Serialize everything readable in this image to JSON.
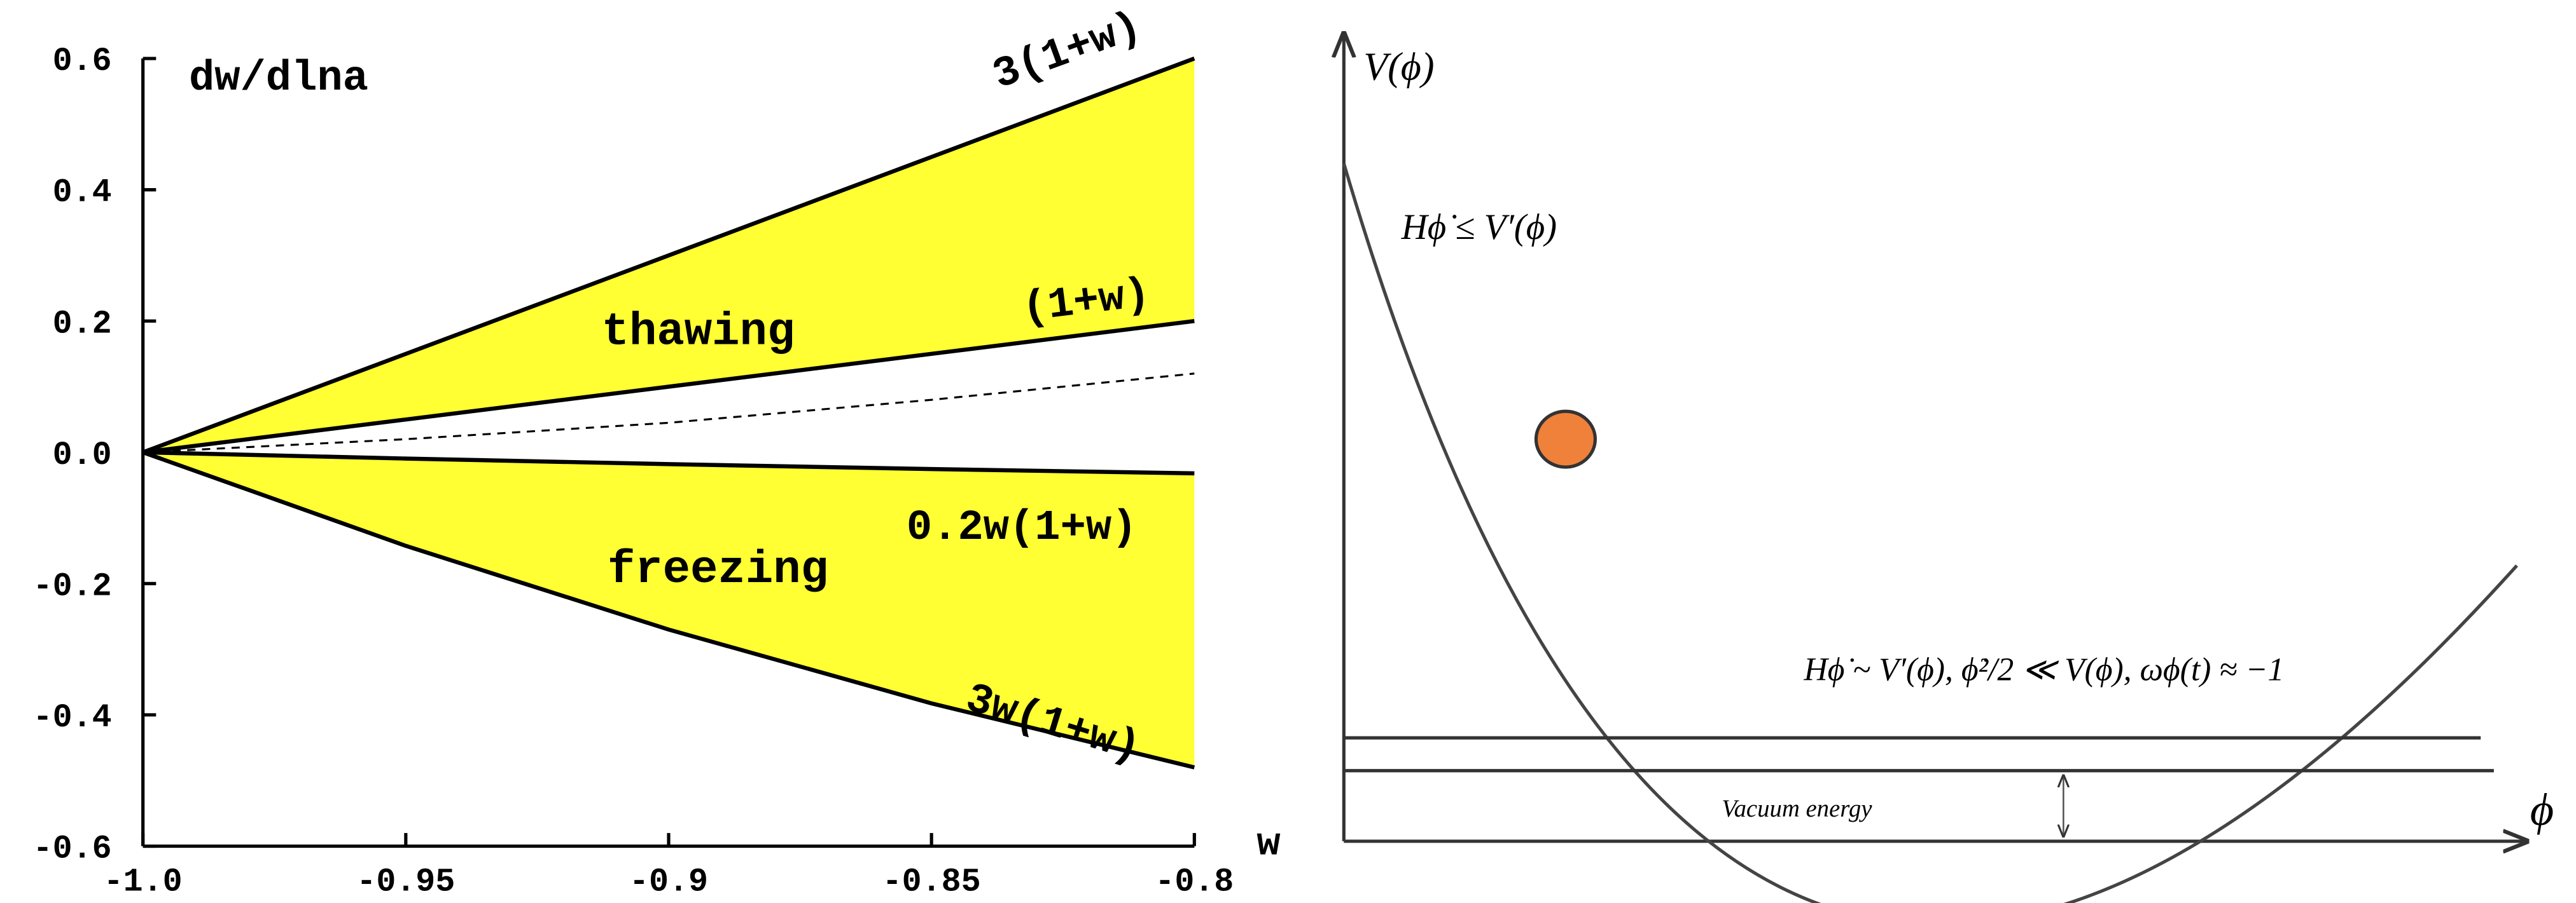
{
  "chart_data": {
    "type": "line",
    "title": "dw/dlna",
    "x": [
      -1,
      -0.95,
      -0.9,
      -0.85,
      -0.8
    ],
    "series": [
      {
        "name": "3(1+w)",
        "color": "#000000",
        "values": [
          0,
          0.15,
          0.3,
          0.45,
          0.6
        ]
      },
      {
        "name": "(1+w)",
        "color": "#000000",
        "values": [
          0,
          0.05,
          0.1,
          0.15,
          0.2
        ]
      },
      {
        "color": "#000000",
        "dashed": true,
        "values": [
          0,
          0.02,
          0.045,
          0.08,
          0.12
        ]
      },
      {
        "name": "0.2w(1+w)",
        "color": "#000000",
        "values": [
          0,
          -0.0095,
          -0.018,
          -0.0255,
          -0.032
        ]
      },
      {
        "name": "3w(1+w)",
        "color": "#000000",
        "values": [
          0,
          -0.1425,
          -0.27,
          -0.3825,
          -0.48
        ]
      }
    ],
    "fills": [
      {
        "between": [
          0,
          1
        ],
        "color": "#ffff33"
      },
      {
        "between": [
          3,
          4
        ],
        "color": "#ffff33"
      }
    ],
    "annotations": [
      "thawing",
      "freezing"
    ],
    "xlim": [
      -1,
      -0.8
    ],
    "xticks": [
      {
        "value": -1,
        "label": "-1.0"
      },
      -0.95,
      -0.9,
      -0.85,
      -0.8
    ],
    "ylim": [
      -0.6,
      0.6
    ],
    "yticks": [
      {
        "value": -0.6,
        "label": "-0.6"
      },
      -0.4,
      -0.2,
      {
        "value": 0,
        "label": "0.0"
      },
      0.2,
      0.4,
      0.6
    ]
  },
  "diagram": {
    "y_label": "V(ϕ)",
    "x_label": "ϕ",
    "x_start": "w",
    "upper_label": "Hϕ̇ ≤ V′(ϕ)",
    "lower_label": "Hϕ̇ ~ V′(ϕ),  ϕ̇²/2 ≪ V(ϕ),  ωϕ(t) ≈ −1",
    "vacuum_label": "Vacuum energy"
  }
}
